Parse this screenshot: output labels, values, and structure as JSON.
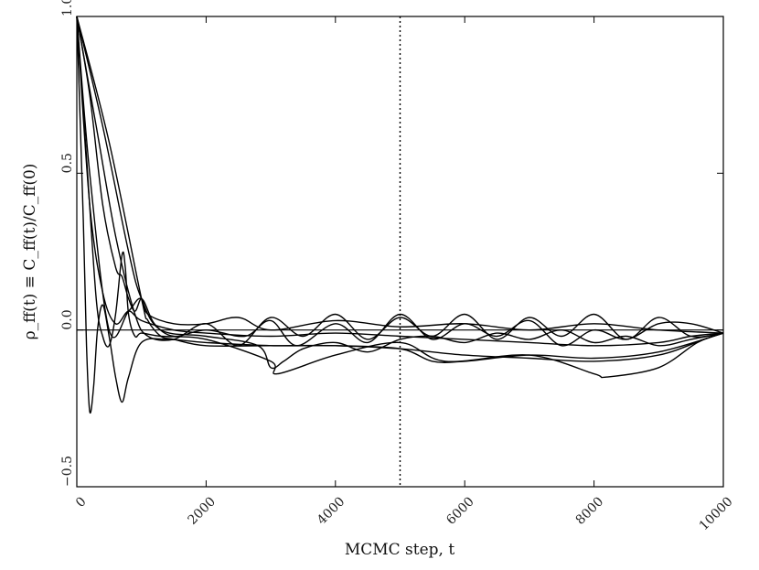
{
  "chart_data": {
    "type": "line",
    "title": "",
    "xlabel": "MCMC step, t",
    "ylabel": "ρ_ff(t) ≡ C_ff(t)/C_ff(0)",
    "xlim": [
      0,
      10000
    ],
    "ylim": [
      -0.5,
      1.0
    ],
    "x_ticks": [
      0,
      2000,
      4000,
      6000,
      8000,
      10000
    ],
    "x_tick_labels": [
      "0",
      "2000",
      "4000",
      "6000",
      "8000",
      "10000"
    ],
    "y_ticks": [
      -0.5,
      0.0,
      0.5,
      1.0
    ],
    "y_tick_labels": [
      "−0.5",
      "0.0",
      "0.5",
      "1.0"
    ],
    "grid": false,
    "reference_lines": {
      "horizontal_y": 0.0,
      "vertical_dotted_x": 5000
    },
    "series": [
      {
        "x": [
          0,
          100,
          150,
          200,
          260,
          320,
          400,
          500,
          600,
          700,
          800,
          1000,
          1400,
          2000,
          3000,
          4000,
          5000,
          6000,
          7000,
          8000,
          9000,
          9700,
          10000
        ],
        "values": [
          1.0,
          0.35,
          -0.05,
          -0.26,
          -0.18,
          0.0,
          0.08,
          -0.02,
          -0.15,
          -0.23,
          -0.15,
          -0.04,
          -0.03,
          -0.04,
          -0.05,
          -0.05,
          -0.06,
          -0.08,
          -0.09,
          -0.1,
          -0.08,
          -0.03,
          -0.01
        ]
      },
      {
        "x": [
          0,
          150,
          300,
          400,
          500,
          600,
          700,
          750,
          800,
          900,
          1000,
          1300,
          2000,
          3000,
          3100,
          4000,
          5000,
          5700,
          7000,
          8000,
          8200,
          9000,
          9600,
          10000
        ],
        "values": [
          1.0,
          0.55,
          0.1,
          -0.02,
          -0.05,
          0.05,
          0.24,
          0.2,
          0.05,
          -0.02,
          -0.01,
          -0.02,
          -0.03,
          -0.1,
          -0.14,
          -0.08,
          -0.04,
          -0.1,
          -0.08,
          -0.14,
          -0.15,
          -0.12,
          -0.04,
          -0.01
        ]
      },
      {
        "x": [
          0,
          200,
          400,
          600,
          700,
          800,
          900,
          1000,
          1100,
          1500,
          2000,
          2500,
          3000,
          4000,
          5000,
          6000,
          7000,
          8000,
          9000,
          10000
        ],
        "values": [
          1.0,
          0.75,
          0.4,
          0.2,
          0.17,
          0.1,
          0.06,
          0.1,
          0.05,
          0.02,
          0.02,
          0.04,
          0.0,
          0.03,
          0.01,
          0.02,
          0.0,
          0.02,
          0.0,
          -0.01
        ]
      },
      {
        "x": [
          0,
          300,
          600,
          900,
          1100,
          1500,
          2000,
          2500,
          3000,
          3500,
          4000,
          4500,
          5000,
          5500,
          6000,
          6500,
          7000,
          7500,
          8000,
          8500,
          9000,
          9500,
          10000
        ],
        "values": [
          1.0,
          0.65,
          0.3,
          0.05,
          -0.02,
          -0.03,
          0.02,
          -0.05,
          0.04,
          -0.02,
          0.05,
          -0.03,
          0.04,
          -0.02,
          0.05,
          -0.03,
          0.04,
          -0.02,
          0.05,
          -0.03,
          0.04,
          -0.02,
          -0.01
        ]
      },
      {
        "x": [
          0,
          400,
          800,
          1000,
          1300,
          2000,
          2800,
          3000,
          3200,
          3500,
          4000,
          4500,
          5000,
          5500,
          6000,
          6500,
          7000,
          7500,
          8000,
          8500,
          9000,
          9500,
          10000
        ],
        "values": [
          1.0,
          0.65,
          0.25,
          0.1,
          0.0,
          -0.02,
          -0.05,
          -0.12,
          -0.1,
          -0.06,
          -0.04,
          -0.07,
          -0.03,
          -0.02,
          -0.04,
          -0.01,
          -0.03,
          0.0,
          -0.04,
          -0.02,
          -0.05,
          -0.03,
          -0.01
        ]
      },
      {
        "x": [
          0,
          500,
          1000,
          1100,
          1300,
          1500,
          2000,
          3000,
          4000,
          5000,
          5500,
          6000,
          7000,
          8000,
          9000,
          10000
        ],
        "values": [
          1.0,
          0.6,
          0.1,
          0.03,
          -0.02,
          -0.03,
          -0.05,
          -0.05,
          -0.05,
          -0.06,
          -0.1,
          -0.1,
          -0.08,
          -0.09,
          -0.07,
          -0.01
        ]
      },
      {
        "x": [
          0,
          200,
          500,
          800,
          1000,
          1200,
          1500,
          2000,
          2600,
          3000,
          3400,
          4000,
          4500,
          5000,
          5500,
          6000,
          6500,
          7000,
          7500,
          8000,
          8500,
          9000,
          9500,
          10000
        ],
        "values": [
          1.0,
          0.5,
          0.0,
          0.06,
          0.1,
          0.02,
          -0.02,
          0.0,
          -0.02,
          0.03,
          -0.05,
          0.02,
          -0.04,
          0.05,
          -0.03,
          0.02,
          -0.02,
          0.03,
          -0.05,
          0.0,
          -0.03,
          0.02,
          0.02,
          -0.01
        ]
      },
      {
        "x": [
          0,
          200,
          400,
          600,
          800,
          1000,
          1500,
          2000,
          3000,
          4000,
          5000,
          6000,
          7000,
          8000,
          9000,
          9500,
          10000
        ],
        "values": [
          1.0,
          0.4,
          0.12,
          0.02,
          0.06,
          0.03,
          0.0,
          -0.01,
          -0.02,
          -0.01,
          -0.02,
          -0.03,
          -0.04,
          -0.05,
          -0.04,
          -0.02,
          -0.01
        ]
      }
    ]
  }
}
